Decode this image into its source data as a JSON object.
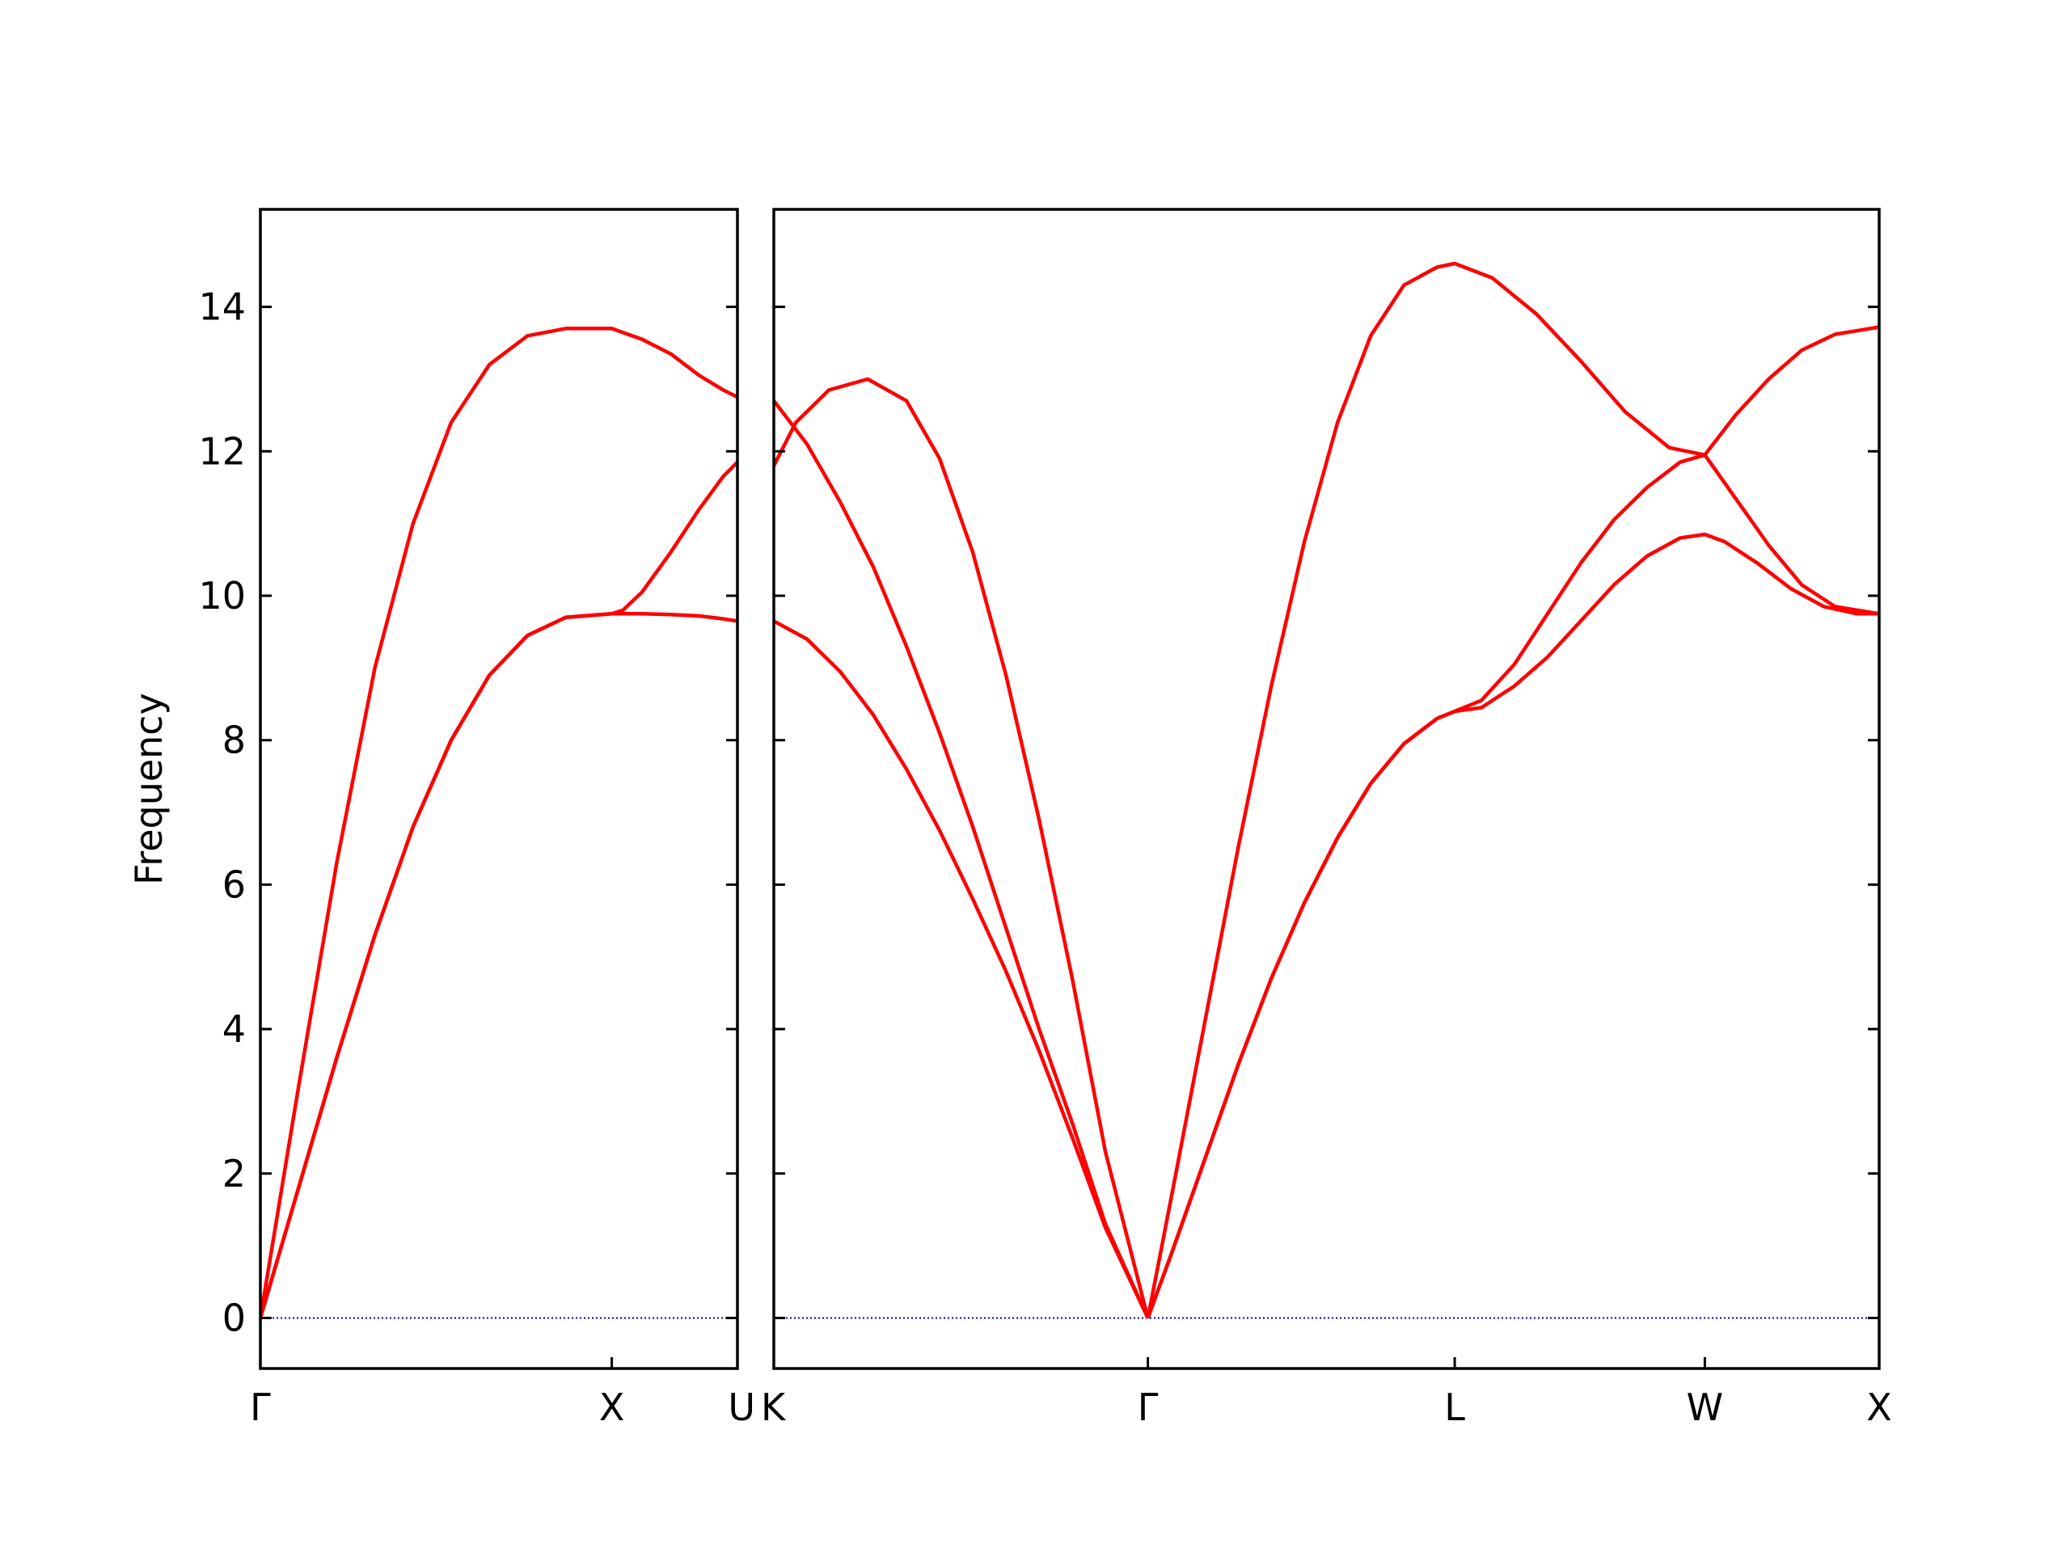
{
  "chart_data": {
    "type": "line",
    "ylabel": "Frequency",
    "ylim": [
      -0.7,
      15.35
    ],
    "yticks": [
      0,
      2,
      4,
      6,
      8,
      10,
      12,
      14
    ],
    "line_color": "#ff0000",
    "zero_line_color": "#0000cc",
    "panels": [
      {
        "name": "gamma-x-u",
        "xlim": [
          0,
          1.0
        ],
        "xticks": [
          {
            "x": 0,
            "label": "Γ"
          },
          {
            "x": 0.7366,
            "label": "X"
          },
          {
            "x": 1.0,
            "label": "U"
          }
        ],
        "series": [
          {
            "x": [
              0,
              0.08,
              0.16,
              0.24,
              0.32,
              0.4,
              0.48,
              0.56,
              0.64,
              0.7366,
              0.8,
              0.86,
              0.92,
              0.97,
              1.0
            ],
            "y": [
              0,
              3.2,
              6.3,
              9.0,
              11.0,
              12.4,
              13.2,
              13.6,
              13.7,
              13.7,
              13.55,
              13.35,
              13.05,
              12.85,
              12.75
            ]
          },
          {
            "x": [
              0,
              0.08,
              0.16,
              0.24,
              0.32,
              0.4,
              0.48,
              0.56,
              0.64,
              0.7366,
              0.76,
              0.8,
              0.86,
              0.92,
              0.97,
              1.0
            ],
            "y": [
              0,
              1.8,
              3.6,
              5.3,
              6.8,
              8.0,
              8.9,
              9.45,
              9.7,
              9.75,
              9.8,
              10.05,
              10.6,
              11.2,
              11.65,
              11.85
            ]
          },
          {
            "x": [
              0,
              0.08,
              0.16,
              0.24,
              0.32,
              0.4,
              0.48,
              0.56,
              0.64,
              0.7366,
              0.8,
              0.86,
              0.92,
              0.97,
              1.0
            ],
            "y": [
              0,
              1.8,
              3.6,
              5.3,
              6.8,
              8.0,
              8.9,
              9.45,
              9.7,
              9.75,
              9.75,
              9.74,
              9.72,
              9.68,
              9.65
            ]
          }
        ]
      },
      {
        "name": "k-gamma-l-w-x",
        "xlim": [
          0,
          1.0
        ],
        "xticks": [
          {
            "x": 0,
            "label": "K"
          },
          {
            "x": 0.3384,
            "label": "Γ"
          },
          {
            "x": 0.616,
            "label": "L"
          },
          {
            "x": 0.8423,
            "label": "W"
          },
          {
            "x": 1.0,
            "label": "X"
          }
        ],
        "series": [
          {
            "x": [
              0,
              0.02,
              0.05,
              0.085,
              0.12,
              0.15,
              0.18,
              0.21,
              0.24,
              0.27,
              0.3,
              0.3384
            ],
            "y": [
              11.8,
              12.4,
              12.85,
              13.0,
              12.7,
              11.9,
              10.6,
              8.9,
              6.9,
              4.7,
              2.3,
              0
            ]
          },
          {
            "x": [
              0,
              0.03,
              0.06,
              0.09,
              0.12,
              0.15,
              0.18,
              0.21,
              0.24,
              0.27,
              0.3,
              0.3384
            ],
            "y": [
              12.7,
              12.1,
              11.3,
              10.4,
              9.3,
              8.1,
              6.8,
              5.4,
              4.0,
              2.7,
              1.3,
              0
            ]
          },
          {
            "x": [
              0,
              0.03,
              0.06,
              0.09,
              0.12,
              0.15,
              0.18,
              0.21,
              0.24,
              0.27,
              0.3,
              0.3384
            ],
            "y": [
              9.65,
              9.4,
              8.95,
              8.35,
              7.6,
              6.75,
              5.8,
              4.8,
              3.7,
              2.5,
              1.25,
              0
            ]
          },
          {
            "x": [
              0.3384,
              0.36,
              0.39,
              0.42,
              0.45,
              0.48,
              0.51,
              0.54,
              0.57,
              0.6,
              0.616,
              0.65,
              0.69,
              0.73,
              0.77,
              0.81,
              0.8423,
              0.87,
              0.9,
              0.93,
              0.96,
              1.0
            ],
            "y": [
              0,
              1.7,
              4.1,
              6.5,
              8.75,
              10.75,
              12.4,
              13.6,
              14.3,
              14.55,
              14.6,
              14.4,
              13.9,
              13.25,
              12.55,
              12.05,
              11.95,
              12.5,
              13.0,
              13.4,
              13.62,
              13.72
            ]
          },
          {
            "x": [
              0.3384,
              0.36,
              0.39,
              0.42,
              0.45,
              0.48,
              0.51,
              0.54,
              0.57,
              0.6,
              0.616,
              0.64,
              0.67,
              0.7,
              0.73,
              0.76,
              0.79,
              0.82,
              0.8423,
              0.87,
              0.9,
              0.93,
              0.96,
              1.0
            ],
            "y": [
              0,
              0.9,
              2.2,
              3.5,
              4.7,
              5.75,
              6.65,
              7.4,
              7.95,
              8.3,
              8.4,
              8.55,
              9.05,
              9.75,
              10.45,
              11.05,
              11.5,
              11.85,
              11.95,
              11.35,
              10.7,
              10.15,
              9.85,
              9.75
            ]
          },
          {
            "x": [
              0.3384,
              0.36,
              0.39,
              0.42,
              0.45,
              0.48,
              0.51,
              0.54,
              0.57,
              0.6,
              0.616,
              0.64,
              0.67,
              0.7,
              0.73,
              0.76,
              0.79,
              0.82,
              0.8423,
              0.86,
              0.89,
              0.92,
              0.95,
              0.98,
              1.0
            ],
            "y": [
              0,
              0.9,
              2.2,
              3.5,
              4.7,
              5.75,
              6.65,
              7.4,
              7.95,
              8.3,
              8.4,
              8.45,
              8.75,
              9.15,
              9.65,
              10.15,
              10.55,
              10.8,
              10.85,
              10.75,
              10.45,
              10.1,
              9.85,
              9.75,
              9.75
            ]
          }
        ]
      }
    ]
  }
}
